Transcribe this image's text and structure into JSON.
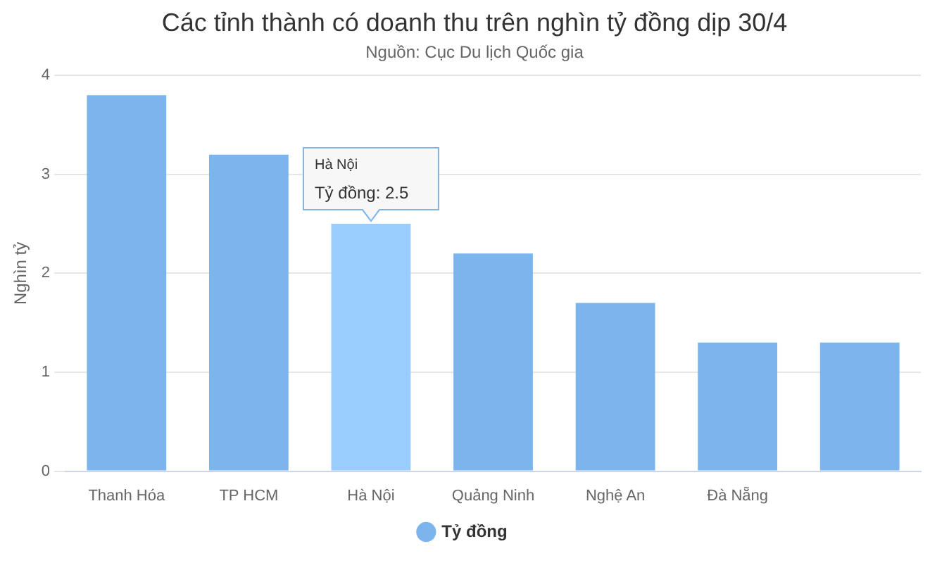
{
  "chart_data": {
    "type": "bar",
    "title": "Các tỉnh thành có doanh thu trên nghìn tỷ đồng dịp 30/4",
    "subtitle": "Nguồn: Cục Du lịch Quốc gia",
    "ylabel": "Nghìn tỷ",
    "categories": [
      "Thanh Hóa",
      "TP HCM",
      "Hà Nội",
      "Quảng Ninh",
      "Nghệ An",
      "Đà Nẵng",
      null
    ],
    "series": [
      {
        "name": "Tỷ đồng",
        "color": "#7cb5ec",
        "colors": [
          "#7cb5ec",
          "#7cb5ec",
          "#99ccff",
          "#7cb5ec",
          "#7cb5ec",
          "#7cb5ec",
          "#7cb5ec"
        ],
        "values": [
          3.8,
          3.2,
          2.5,
          2.2,
          1.7,
          1.3,
          1.3
        ]
      }
    ],
    "ylim": [
      0,
      4
    ],
    "yticks": [
      0,
      1,
      2,
      3,
      4
    ],
    "grid": "y",
    "legend": "bottom",
    "annotations": [
      {
        "text": "Hà Nội\nTỷ đồng: 2.5",
        "x": "Hà Nội",
        "y": 2.5
      }
    ]
  }
}
